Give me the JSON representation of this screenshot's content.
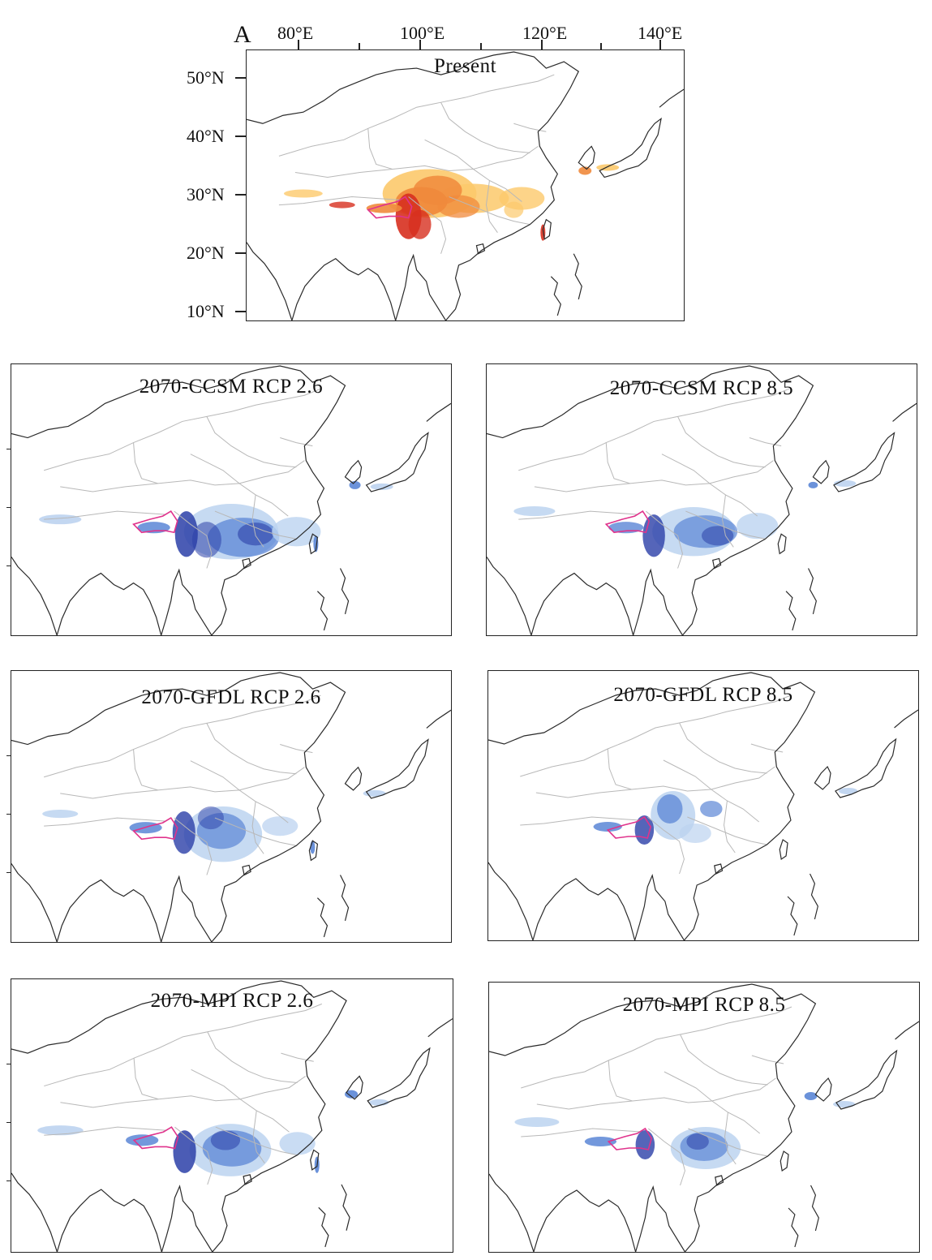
{
  "figure": {
    "panel_letter": "A",
    "top_axis_labels": [
      "80°E",
      "100°E",
      "120°E",
      "140°E"
    ],
    "left_axis_labels": [
      "50°N",
      "40°N",
      "30°N",
      "20°N",
      "10°N"
    ]
  },
  "panels": [
    {
      "id": "present",
      "title": "Present",
      "palette": "warm"
    },
    {
      "id": "ccsm26",
      "title": "2070-CCSM RCP 2.6",
      "palette": "cool"
    },
    {
      "id": "ccsm85",
      "title": "2070-CCSM RCP 8.5",
      "palette": "cool"
    },
    {
      "id": "gfdl26",
      "title": "2070-GFDL RCP 2.6",
      "palette": "cool"
    },
    {
      "id": "gfdl85",
      "title": "2070-GFDL RCP 8.5",
      "palette": "cool"
    },
    {
      "id": "mpi26",
      "title": "2070-MPI RCP 2.6",
      "palette": "cool"
    },
    {
      "id": "mpi85",
      "title": "2070-MPI RCP 8.5",
      "palette": "cool"
    }
  ],
  "colors": {
    "warm_high": "#d7301f",
    "warm_mid": "#f08a3c",
    "warm_low": "#fcc96b",
    "cool_high": "#2b3fa8",
    "cool_mid": "#5b86d6",
    "cool_low": "#bcd3f0",
    "study_outline": "#e0338c",
    "coast": "#2a2a2a",
    "border": "#b8b8b8"
  }
}
